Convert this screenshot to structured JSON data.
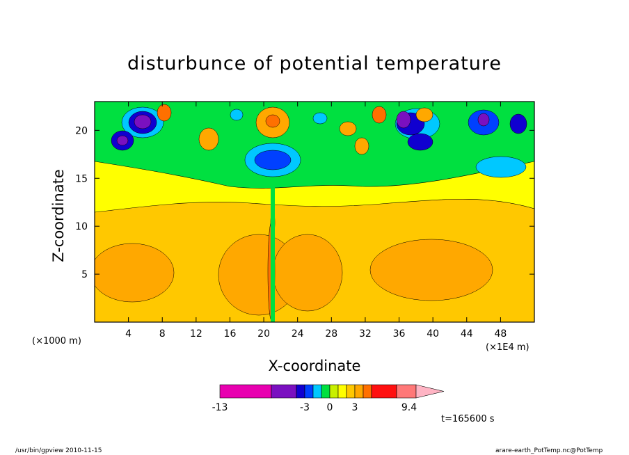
{
  "chart_data": {
    "type": "heatmap",
    "title": "disturbunce of potential temperature",
    "xlabel": "X-coordinate",
    "ylabel": "Z-coordinate",
    "x_unit_left": "(×1000 m)",
    "x_unit_right": "(×1E4 m)",
    "xlim": [
      0,
      52
    ],
    "ylim": [
      0,
      23
    ],
    "x_ticks": [
      4,
      8,
      12,
      16,
      20,
      24,
      28,
      32,
      36,
      40,
      44,
      48
    ],
    "y_ticks": [
      5,
      10,
      15,
      20
    ],
    "colorbar": {
      "tick_labels": [
        "-13",
        "-3",
        "0",
        "3",
        "9.4"
      ],
      "colors": [
        "#e800b0",
        "#7a10c0",
        "#1000d0",
        "#0040ff",
        "#00c8ff",
        "#00e040",
        "#c8f000",
        "#ffff00",
        "#ffc800",
        "#ffa800",
        "#ff7000",
        "#ff1010",
        "#ff7878",
        "#ffb4c4"
      ]
    },
    "time_label": "t=165600 s"
  },
  "footer": {
    "left": "/usr/bin/gpview   2010-11-15",
    "right": "arare-earth_PotTemp.nc@PotTemp"
  }
}
